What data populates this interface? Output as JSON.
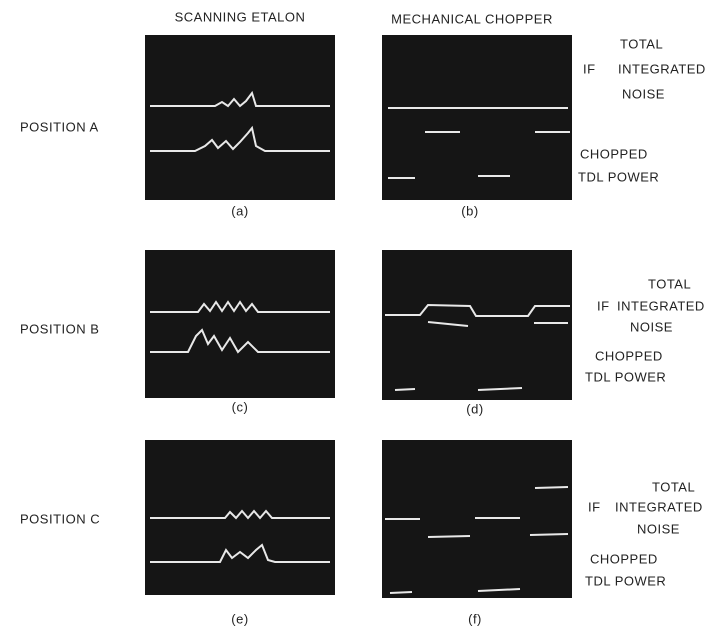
{
  "columns": [
    "SCANNING ETALON",
    "MECHANICAL CHOPPER"
  ],
  "rows": [
    {
      "label": "POSITION A",
      "captions": [
        "(a)",
        "(b)"
      ],
      "side": {
        "total": "TOTAL",
        "if": "IF",
        "integrated": "INTEGRATED",
        "noise": "NOISE",
        "chopped": "CHOPPED",
        "tdl_power": "TDL POWER"
      }
    },
    {
      "label": "POSITION B",
      "captions": [
        "(c)",
        "(d)"
      ],
      "side": {
        "total": "TOTAL",
        "if": "IF",
        "integrated": "INTEGRATED",
        "noise": "NOISE",
        "chopped": "CHOPPED",
        "tdl_power": "TDL POWER"
      }
    },
    {
      "label": "POSITION C",
      "captions": [
        "(e)",
        "(f)"
      ],
      "side": {
        "total": "TOTAL",
        "if": "IF",
        "integrated": "INTEGRATED",
        "noise": "NOISE",
        "chopped": "CHOPPED",
        "tdl_power": "TDL POWER"
      }
    }
  ]
}
